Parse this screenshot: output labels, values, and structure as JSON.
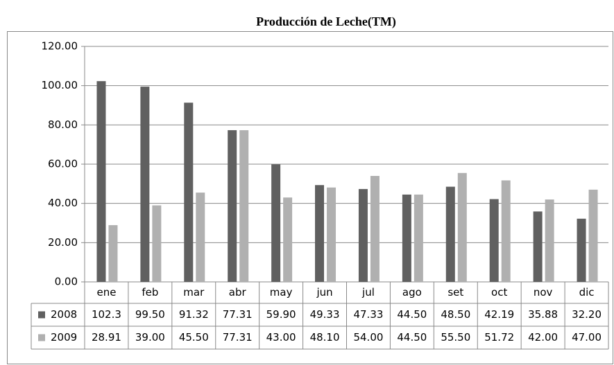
{
  "chart_data": {
    "type": "bar",
    "title": "Producción de Leche(TM)",
    "categories": [
      "ene",
      "feb",
      "mar",
      "abr",
      "may",
      "jun",
      "jul",
      "ago",
      "set",
      "oct",
      "nov",
      "dic"
    ],
    "series": [
      {
        "name": "2008",
        "color": "#606060",
        "values": [
          102.3,
          99.5,
          91.32,
          77.31,
          59.9,
          49.33,
          47.33,
          44.5,
          48.5,
          42.19,
          35.88,
          32.2
        ],
        "value_labels": [
          "102.3",
          "99.50",
          "91.32",
          "77.31",
          "59.90",
          "49.33",
          "47.33",
          "44.50",
          "48.50",
          "42.19",
          "35.88",
          "32.20"
        ]
      },
      {
        "name": "2009",
        "color": "#b0b0b0",
        "values": [
          28.91,
          39.0,
          45.5,
          77.31,
          43.0,
          48.1,
          54.0,
          44.5,
          55.5,
          51.72,
          42.0,
          47.0
        ],
        "value_labels": [
          "28.91",
          "39.00",
          "45.50",
          "77.31",
          "43.00",
          "48.10",
          "54.00",
          "44.50",
          "55.50",
          "51.72",
          "42.00",
          "47.00"
        ]
      }
    ],
    "ylim": [
      0,
      120
    ],
    "yticks": [
      {
        "value": 0,
        "label": "0.00"
      },
      {
        "value": 20,
        "label": "20.00"
      },
      {
        "value": 40,
        "label": "40.00"
      },
      {
        "value": 60,
        "label": "60.00"
      },
      {
        "value": 80,
        "label": "80.00"
      },
      {
        "value": 100,
        "label": "100.00"
      },
      {
        "value": 120,
        "label": "120.00"
      }
    ],
    "grid": true
  }
}
